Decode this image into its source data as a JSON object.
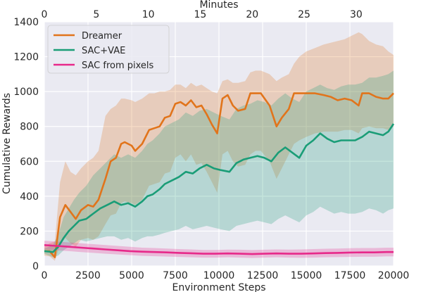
{
  "chart_data": {
    "type": "line",
    "xlabel": "Environment Steps",
    "ylabel": "Cumulative Rewards",
    "x2label": "Minutes",
    "xlim": [
      0,
      20000
    ],
    "ylim": [
      0,
      1400
    ],
    "x2lim": [
      0,
      33.6
    ],
    "xticks": [
      "0",
      "2500",
      "5000",
      "7500",
      "10000",
      "12500",
      "15000",
      "17500",
      "20000"
    ],
    "yticks": [
      "0",
      "200",
      "400",
      "600",
      "800",
      "1000",
      "1200",
      "1400"
    ],
    "x2ticks": [
      "0",
      "5",
      "10",
      "15",
      "20",
      "25",
      "30"
    ],
    "grid": true,
    "legend_position": "top-left",
    "series": [
      {
        "name": "Dreamer",
        "color": "#e1741b",
        "x": [
          0,
          300,
          600,
          900,
          1200,
          1500,
          1800,
          2100,
          2500,
          2800,
          3100,
          3500,
          3800,
          4100,
          4400,
          4600,
          5000,
          5200,
          5600,
          6000,
          6300,
          6600,
          6900,
          7200,
          7500,
          7800,
          8100,
          8400,
          8700,
          9000,
          9300,
          9600,
          9900,
          10200,
          10500,
          10800,
          11100,
          11500,
          11800,
          12100,
          12400,
          12900,
          13300,
          13600,
          14000,
          14300,
          14600,
          15000,
          15500,
          16000,
          16400,
          16800,
          17200,
          17600,
          18000,
          18200,
          18600,
          19000,
          19400,
          19700,
          20000
        ],
        "y": [
          85,
          85,
          50,
          280,
          350,
          310,
          270,
          320,
          350,
          340,
          380,
          500,
          600,
          620,
          700,
          710,
          690,
          660,
          700,
          780,
          790,
          800,
          850,
          860,
          930,
          940,
          920,
          950,
          910,
          920,
          870,
          810,
          760,
          960,
          980,
          920,
          890,
          900,
          990,
          990,
          990,
          920,
          800,
          850,
          900,
          990,
          990,
          990,
          990,
          980,
          970,
          950,
          960,
          950,
          920,
          990,
          990,
          970,
          960,
          960,
          990
        ],
        "upper": [
          110,
          130,
          140,
          480,
          600,
          540,
          520,
          560,
          600,
          620,
          660,
          860,
          900,
          920,
          960,
          960,
          950,
          940,
          960,
          990,
          990,
          1000,
          1000,
          1010,
          1040,
          1040,
          1020,
          1050,
          1030,
          1040,
          1020,
          1000,
          990,
          1060,
          1070,
          1050,
          1050,
          1060,
          1110,
          1120,
          1120,
          1100,
          1060,
          1080,
          1100,
          1160,
          1200,
          1230,
          1250,
          1270,
          1280,
          1290,
          1300,
          1320,
          1340,
          1330,
          1290,
          1270,
          1260,
          1230,
          1210
        ],
        "lower": [
          60,
          55,
          30,
          120,
          160,
          130,
          110,
          150,
          160,
          150,
          170,
          240,
          290,
          300,
          360,
          370,
          360,
          350,
          380,
          460,
          470,
          480,
          530,
          540,
          620,
          640,
          600,
          640,
          580,
          590,
          540,
          480,
          420,
          640,
          660,
          600,
          570,
          580,
          640,
          660,
          660,
          600,
          500,
          560,
          640,
          700,
          720,
          740,
          760,
          770,
          770,
          770,
          780,
          780,
          760,
          790,
          800,
          790,
          790,
          780,
          800
        ]
      },
      {
        "name": "SAC+VAE",
        "color": "#1a9d77",
        "x": [
          0,
          500,
          800,
          1100,
          1400,
          1700,
          2000,
          2400,
          2800,
          3200,
          3600,
          4000,
          4400,
          4800,
          5200,
          5600,
          5900,
          6200,
          6600,
          6900,
          7300,
          7700,
          8100,
          8500,
          8900,
          9300,
          9700,
          10100,
          10600,
          11000,
          11400,
          11800,
          12200,
          12600,
          13000,
          13400,
          13800,
          14200,
          14600,
          15000,
          15400,
          15800,
          16200,
          16600,
          17000,
          17400,
          17800,
          18200,
          18600,
          19000,
          19400,
          19700,
          20000
        ],
        "y": [
          85,
          80,
          110,
          160,
          200,
          230,
          260,
          270,
          300,
          330,
          350,
          370,
          350,
          360,
          340,
          370,
          400,
          410,
          440,
          470,
          490,
          510,
          540,
          530,
          560,
          580,
          560,
          550,
          540,
          590,
          610,
          620,
          630,
          620,
          600,
          650,
          680,
          650,
          620,
          690,
          720,
          760,
          730,
          710,
          720,
          720,
          720,
          740,
          770,
          760,
          750,
          770,
          815
        ],
        "upper": [
          100,
          120,
          180,
          280,
          330,
          380,
          420,
          460,
          520,
          560,
          600,
          640,
          620,
          640,
          620,
          660,
          700,
          720,
          760,
          800,
          820,
          840,
          880,
          860,
          890,
          900,
          880,
          860,
          840,
          900,
          920,
          930,
          950,
          940,
          920,
          960,
          990,
          960,
          940,
          1000,
          1020,
          1040,
          1020,
          1010,
          1030,
          1040,
          1040,
          1050,
          1080,
          1080,
          1090,
          1100,
          1120
        ],
        "lower": [
          70,
          50,
          60,
          90,
          110,
          130,
          150,
          140,
          150,
          160,
          170,
          170,
          150,
          160,
          140,
          160,
          170,
          170,
          180,
          190,
          200,
          210,
          230,
          210,
          220,
          230,
          220,
          210,
          200,
          230,
          240,
          250,
          260,
          250,
          240,
          270,
          290,
          270,
          250,
          290,
          310,
          340,
          320,
          300,
          310,
          300,
          300,
          310,
          330,
          320,
          300,
          320,
          330
        ]
      },
      {
        "name": "SAC from pixels",
        "color": "#e7298a",
        "x": [
          0,
          700,
          1400,
          2100,
          2800,
          3500,
          4200,
          4900,
          5600,
          6300,
          7000,
          7700,
          8400,
          9100,
          9800,
          10500,
          11200,
          11900,
          12600,
          13300,
          14000,
          14700,
          15400,
          16100,
          16800,
          17500,
          18200,
          18900,
          19600,
          20000
        ],
        "y": [
          120,
          115,
          110,
          105,
          100,
          95,
          90,
          85,
          82,
          80,
          78,
          75,
          73,
          70,
          70,
          72,
          70,
          68,
          70,
          72,
          70,
          70,
          72,
          74,
          75,
          77,
          78,
          78,
          80,
          80
        ],
        "upper": [
          145,
          140,
          135,
          130,
          125,
          120,
          115,
          110,
          105,
          103,
          100,
          97,
          95,
          92,
          92,
          94,
          93,
          91,
          93,
          95,
          94,
          95,
          97,
          99,
          100,
          102,
          103,
          103,
          105,
          105
        ],
        "lower": [
          95,
          90,
          85,
          80,
          75,
          70,
          66,
          62,
          58,
          56,
          54,
          52,
          50,
          48,
          48,
          50,
          48,
          46,
          48,
          50,
          48,
          47,
          48,
          50,
          51,
          52,
          53,
          53,
          55,
          55
        ]
      }
    ]
  }
}
